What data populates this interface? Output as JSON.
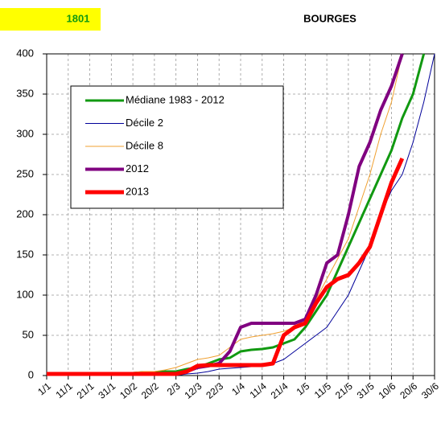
{
  "chart_data": {
    "type": "line",
    "code": "1801",
    "title": "BOURGES",
    "categories": [
      "1/1",
      null,
      "11/1",
      null,
      "21/1",
      null,
      "31/1",
      null,
      "10/2",
      null,
      "20/2",
      null,
      "2/3",
      null,
      "12/3",
      null,
      "22/3",
      null,
      "1/4",
      null,
      "11/4",
      null,
      "21/4",
      null,
      "1/5",
      null,
      "11/5",
      null,
      "21/5",
      null,
      "31/5",
      null,
      "10/6",
      null,
      "20/6",
      null,
      "30/6"
    ],
    "series": [
      {
        "name": "Médiane 1983 - 2012",
        "color": "#119911",
        "width": 3,
        "values": [
          3,
          3,
          3,
          3,
          3,
          3,
          3,
          3,
          3,
          4,
          4,
          5,
          5,
          8,
          10,
          15,
          20,
          22,
          30,
          32,
          33,
          35,
          40,
          45,
          60,
          80,
          100,
          130,
          160,
          190,
          220,
          250,
          280,
          320,
          350,
          400,
          null
        ]
      },
      {
        "name": "Décile 2",
        "color": "#000099",
        "width": 1,
        "values": [
          0,
          0,
          0,
          0,
          0,
          0,
          0,
          0,
          0,
          0,
          0,
          0,
          0,
          2,
          3,
          5,
          8,
          9,
          10,
          11,
          12,
          15,
          20,
          30,
          40,
          50,
          60,
          80,
          100,
          130,
          160,
          200,
          230,
          250,
          290,
          340,
          400
        ]
      },
      {
        "name": "Décile 8",
        "color": "#f0a030",
        "width": 1,
        "values": [
          3,
          3,
          3,
          3,
          3,
          3,
          3,
          4,
          4,
          5,
          5,
          7,
          10,
          15,
          20,
          22,
          25,
          35,
          45,
          48,
          50,
          52,
          55,
          60,
          70,
          95,
          120,
          145,
          170,
          210,
          250,
          300,
          340,
          400,
          null,
          null,
          null
        ]
      },
      {
        "name": "2012",
        "color": "#800080",
        "width": 4,
        "values": [
          2,
          2,
          2,
          2,
          2,
          2,
          2,
          2,
          2,
          2,
          2,
          2,
          2,
          5,
          10,
          12,
          15,
          30,
          60,
          65,
          65,
          65,
          65,
          65,
          70,
          100,
          140,
          150,
          200,
          260,
          290,
          330,
          360,
          400,
          null,
          null,
          null
        ]
      },
      {
        "name": "2013",
        "color": "#ff0000",
        "width": 5,
        "values": [
          2,
          2,
          2,
          2,
          2,
          2,
          2,
          2,
          2,
          2,
          2,
          2,
          2,
          5,
          12,
          13,
          13,
          13,
          13,
          13,
          13,
          15,
          50,
          60,
          65,
          90,
          110,
          120,
          125,
          140,
          160,
          200,
          240,
          270,
          null,
          null,
          null
        ]
      }
    ],
    "ylim": [
      0,
      400
    ],
    "yticks": [
      0,
      50,
      100,
      150,
      200,
      250,
      300,
      350,
      400
    ],
    "grid": true,
    "legend": "upper left"
  }
}
